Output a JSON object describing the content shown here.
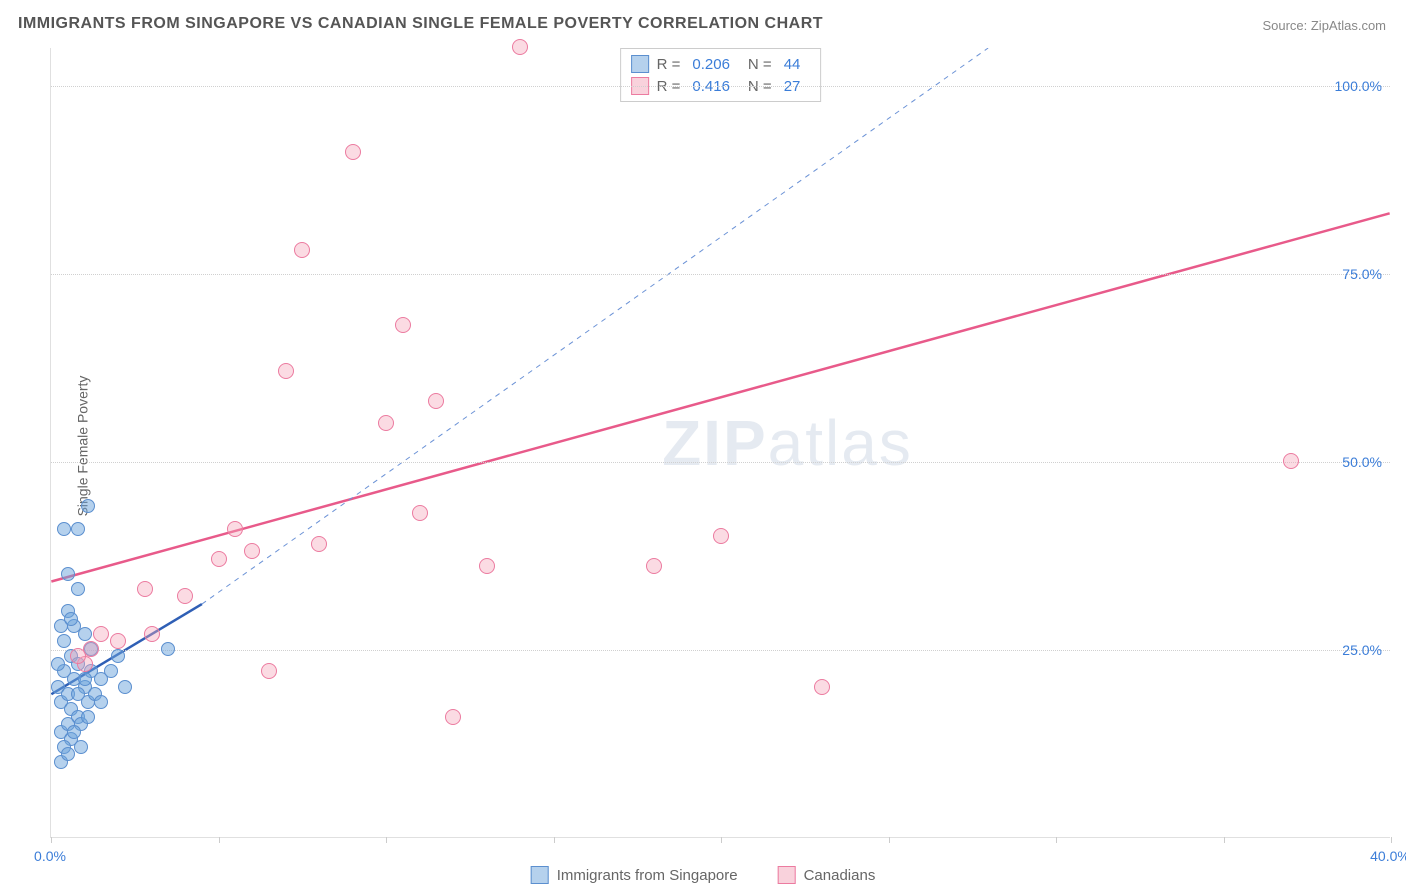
{
  "title": "IMMIGRANTS FROM SINGAPORE VS CANADIAN SINGLE FEMALE POVERTY CORRELATION CHART",
  "source": "Source: ZipAtlas.com",
  "y_axis_label": "Single Female Poverty",
  "watermark_bold": "ZIP",
  "watermark_light": "atlas",
  "chart": {
    "type": "scatter",
    "xlim": [
      0,
      40
    ],
    "ylim": [
      0,
      105
    ],
    "x_ticks": [
      0,
      5,
      10,
      15,
      20,
      25,
      30,
      35,
      40
    ],
    "x_tick_labels": {
      "0": "0.0%",
      "40": "40.0%"
    },
    "y_gridlines": [
      25,
      50,
      75,
      100
    ],
    "y_tick_labels": {
      "25": "25.0%",
      "50": "50.0%",
      "75": "75.0%",
      "100": "100.0%"
    },
    "background_color": "#ffffff",
    "grid_color": "#d0d0d0",
    "axis_color": "#e0e0e0",
    "series": [
      {
        "name": "Immigrants from Singapore",
        "color_fill": "rgba(108,163,219,0.5)",
        "color_stroke": "#5b8fcf",
        "marker_size": 14,
        "R": "0.206",
        "N": "44",
        "trend_solid": {
          "x1": 0,
          "y1": 19,
          "x2": 4.5,
          "y2": 31,
          "color": "#2f5fb5",
          "width": 2.5
        },
        "trend_dash": {
          "x1": 4.5,
          "y1": 31,
          "x2": 28,
          "y2": 105,
          "color": "#6b92d6",
          "width": 1,
          "dash": "5,5"
        },
        "points": [
          [
            0.2,
            20
          ],
          [
            0.3,
            18
          ],
          [
            0.4,
            22
          ],
          [
            0.5,
            19
          ],
          [
            0.6,
            17
          ],
          [
            0.7,
            21
          ],
          [
            0.8,
            16
          ],
          [
            0.3,
            14
          ],
          [
            0.5,
            15
          ],
          [
            0.6,
            24
          ],
          [
            0.8,
            23
          ],
          [
            1.0,
            20
          ],
          [
            1.1,
            18
          ],
          [
            1.2,
            22
          ],
          [
            0.4,
            26
          ],
          [
            0.7,
            28
          ],
          [
            0.5,
            30
          ],
          [
            1.3,
            19
          ],
          [
            1.5,
            21
          ],
          [
            0.9,
            15
          ],
          [
            0.6,
            13
          ],
          [
            0.4,
            12
          ],
          [
            0.3,
            28
          ],
          [
            1.8,
            22
          ],
          [
            2.0,
            24
          ],
          [
            2.2,
            20
          ],
          [
            0.5,
            35
          ],
          [
            0.8,
            33
          ],
          [
            1.2,
            25
          ],
          [
            1.0,
            27
          ],
          [
            1.5,
            18
          ],
          [
            0.4,
            41
          ],
          [
            0.8,
            41
          ],
          [
            1.1,
            44
          ],
          [
            3.5,
            25
          ],
          [
            0.3,
            10
          ],
          [
            0.5,
            11
          ],
          [
            0.7,
            14
          ],
          [
            0.9,
            12
          ],
          [
            1.1,
            16
          ],
          [
            0.2,
            23
          ],
          [
            0.6,
            29
          ],
          [
            0.8,
            19
          ],
          [
            1.0,
            21
          ]
        ]
      },
      {
        "name": "Canadians",
        "color_fill": "rgba(244,166,185,0.4)",
        "color_stroke": "#ec7ba0",
        "marker_size": 16,
        "R": "0.416",
        "N": "27",
        "trend_solid": {
          "x1": 0,
          "y1": 34,
          "x2": 40,
          "y2": 83,
          "color": "#e85a8a",
          "width": 2.5
        },
        "points": [
          [
            1.0,
            23
          ],
          [
            1.2,
            25
          ],
          [
            1.5,
            27
          ],
          [
            2.0,
            26
          ],
          [
            3.0,
            27
          ],
          [
            2.8,
            33
          ],
          [
            4.0,
            32
          ],
          [
            5.0,
            37
          ],
          [
            5.5,
            41
          ],
          [
            6.0,
            38
          ],
          [
            6.5,
            22
          ],
          [
            7.0,
            62
          ],
          [
            7.5,
            78
          ],
          [
            8.0,
            39
          ],
          [
            9.0,
            91
          ],
          [
            10.0,
            55
          ],
          [
            10.5,
            68
          ],
          [
            11.0,
            43
          ],
          [
            11.5,
            58
          ],
          [
            12.0,
            16
          ],
          [
            13.0,
            36
          ],
          [
            14.0,
            105
          ],
          [
            18.0,
            36
          ],
          [
            20.0,
            40
          ],
          [
            23.0,
            20
          ],
          [
            37.0,
            50
          ],
          [
            0.8,
            24
          ]
        ]
      }
    ]
  },
  "stat_legend": {
    "r_label": "R =",
    "n_label": "N ="
  },
  "bottom_legend_labels": {
    "series1": "Immigrants from Singapore",
    "series2": "Canadians"
  }
}
